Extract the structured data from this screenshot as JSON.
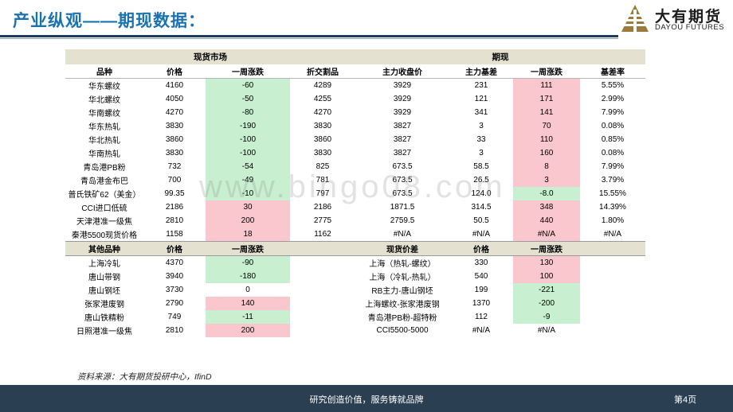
{
  "title": "产业纵观——期现数据：",
  "logo": {
    "cn": "大有期货",
    "en": "DAYOU FUTURES"
  },
  "sections": {
    "spot": "现货市场",
    "futures": "期现"
  },
  "headers": [
    "品种",
    "价格",
    "一周涨跌",
    "折交割品",
    "主力收盘价",
    "主力基差",
    "一周涨跌",
    "基差率"
  ],
  "rows": [
    [
      "华东螺纹",
      "4160",
      "-60",
      "4289",
      "3929",
      "231",
      "111",
      "5.55%"
    ],
    [
      "华北螺纹",
      "4050",
      "-50",
      "4255",
      "3929",
      "121",
      "171",
      "2.99%"
    ],
    [
      "华南螺纹",
      "4270",
      "-80",
      "4270",
      "3929",
      "341",
      "141",
      "7.99%"
    ],
    [
      "华东热轧",
      "3830",
      "-190",
      "3830",
      "3827",
      "3",
      "70",
      "0.08%"
    ],
    [
      "华北热轧",
      "3860",
      "-100",
      "3860",
      "3827",
      "33",
      "110",
      "0.85%"
    ],
    [
      "华南热轧",
      "3830",
      "-100",
      "3830",
      "3827",
      "3",
      "160",
      "0.08%"
    ],
    [
      "青岛港PB粉",
      "732",
      "-54",
      "825",
      "673.5",
      "58.5",
      "8",
      "7.99%"
    ],
    [
      "青岛港金布巴",
      "700",
      "-49",
      "781",
      "673.5",
      "26.5",
      "3",
      "3.79%"
    ],
    [
      "普氏铁矿62（美金）",
      "99.35",
      "-10",
      "797",
      "673.5",
      "124.0",
      "-8.0",
      "15.55%"
    ],
    [
      "CCI进口低硫",
      "2186",
      "30",
      "2186",
      "1871.5",
      "314.5",
      "348",
      "14.39%"
    ],
    [
      "天津港准一级焦",
      "2810",
      "200",
      "2775",
      "2759.5",
      "50.5",
      "440",
      "1.80%"
    ],
    [
      "秦港5500现货价格",
      "1158",
      "18",
      "1162",
      "#N/A",
      "#N/A",
      "#N/A",
      "#N/A"
    ]
  ],
  "headers2": [
    "其他品种",
    "价格",
    "一周涨跌",
    "",
    "现货价差",
    "价格",
    "一周涨跌",
    ""
  ],
  "rows2": [
    [
      "上海冷轧",
      "4370",
      "-90",
      "",
      "上海（热轧-螺纹）",
      "330",
      "130",
      ""
    ],
    [
      "唐山带钢",
      "3940",
      "-180",
      "",
      "上海（冷轧-热轧）",
      "540",
      "100",
      ""
    ],
    [
      "唐山钢坯",
      "3730",
      "0",
      "",
      "RB主力-唐山钢坯",
      "199",
      "-221",
      ""
    ],
    [
      "张家港废钢",
      "2790",
      "140",
      "",
      "上海螺纹-张家港废钢",
      "1370",
      "-200",
      ""
    ],
    [
      "唐山铁精粉",
      "749",
      "-11",
      "",
      "青岛港PB粉-超特粉",
      "112",
      "-9",
      ""
    ],
    [
      "日照港准一级焦",
      "2810",
      "200",
      "",
      "CCI5500-5000",
      "#N/A",
      "#N/A",
      ""
    ]
  ],
  "cell_colors": {
    "rows_col3": [
      "g",
      "g",
      "g",
      "g",
      "g",
      "g",
      "g",
      "g",
      "g",
      "r",
      "r",
      "r"
    ],
    "rows_col7": [
      "r",
      "r",
      "r",
      "r",
      "r",
      "r",
      "r",
      "r",
      "g",
      "r",
      "r",
      "r"
    ],
    "rows2_col3": [
      "g",
      "g",
      "",
      "r",
      "g",
      "r"
    ],
    "rows2_col7": [
      "r",
      "r",
      "g",
      "g",
      "g",
      ""
    ]
  },
  "watermark": "www.bingo08.com",
  "source": "资料来源：大有期货投研中心，IfinD",
  "footer": {
    "slogan": "研究创造价值，服务铸就品牌",
    "page": "第4页"
  }
}
